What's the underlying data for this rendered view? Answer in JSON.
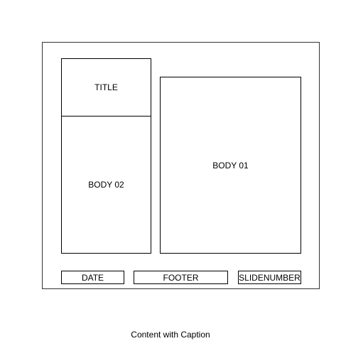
{
  "layout": {
    "title_label": "TITLE",
    "body02_label": "BODY 02",
    "body01_label": "BODY 01",
    "date_label": "DATE",
    "footer_label": "FOOTER",
    "slidenumber_label": "SLIDENUMBER"
  },
  "caption": "Content with Caption"
}
